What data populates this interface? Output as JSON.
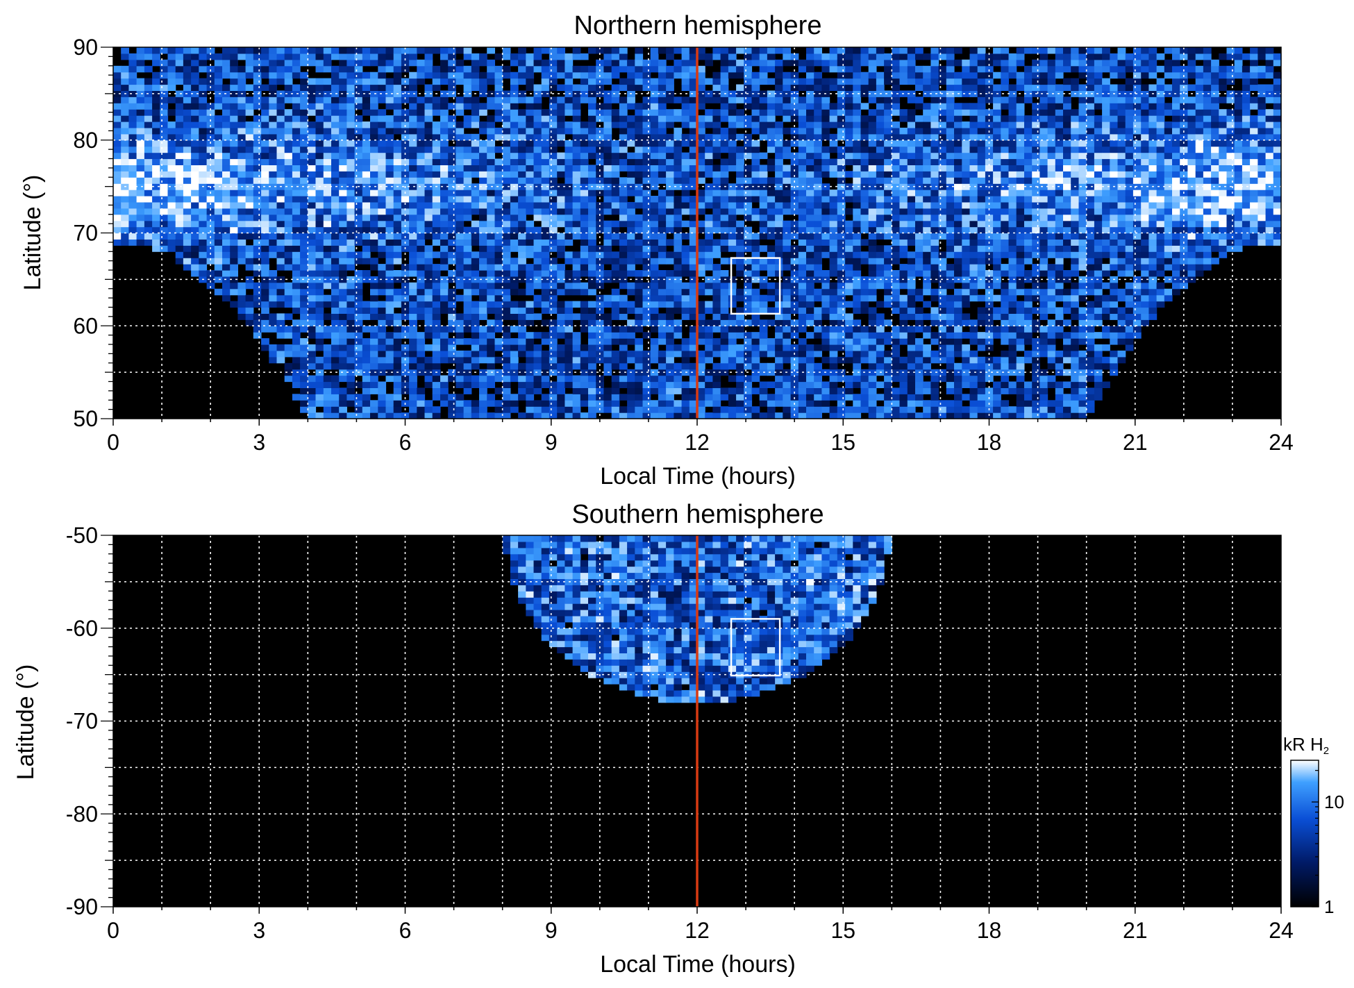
{
  "chart_data": [
    {
      "type": "heatmap",
      "title": "Northern hemisphere",
      "xlabel": "Local Time (hours)",
      "ylabel": "Latitude (°)",
      "xlim": [
        0,
        24
      ],
      "ylim": [
        50,
        90
      ],
      "xticks": [
        0,
        3,
        6,
        9,
        12,
        15,
        18,
        21,
        24
      ],
      "yticks": [
        50,
        60,
        70,
        80,
        90
      ],
      "grid": true,
      "marker_line": {
        "x": 12,
        "color": "#d83a12"
      },
      "highlight_box": {
        "x": [
          12.7,
          13.7
        ],
        "y": [
          61.3,
          67.3
        ],
        "color": "#ffffff"
      },
      "coverage": "observed emission outside a dark region bounded at ~69° near 0 and 24 h, reaching down to 50° between ~4 h and ~19.5 h",
      "intensity_scale": "kR H2, log 1 to ~25"
    },
    {
      "type": "heatmap",
      "title": "Southern hemisphere",
      "xlabel": "Local Time (hours)",
      "ylabel": "Latitude (°)",
      "xlim": [
        0,
        24
      ],
      "ylim": [
        -90,
        -50
      ],
      "xticks": [
        0,
        3,
        6,
        9,
        12,
        15,
        18,
        21,
        24
      ],
      "yticks": [
        -90,
        -80,
        -70,
        -60,
        -50
      ],
      "grid": true,
      "marker_line": {
        "x": 12,
        "color": "#d83a12"
      },
      "highlight_box": {
        "x": [
          12.7,
          13.7
        ],
        "y": [
          -65.1,
          -59.0
        ],
        "color": "#ffffff"
      },
      "coverage": "observed emission confined to an arc centred at 12 h, spanning ~8 h to ~15.9 h at -50° and reaching down to ~-68° at noon",
      "intensity_scale": "kR H2, log 1 to ~25"
    }
  ],
  "colorbar": {
    "label": "kR H",
    "label_subscript": "2",
    "ticks": [
      {
        "value": 1,
        "label": "1"
      },
      {
        "value": 10,
        "label": "10"
      }
    ],
    "range": [
      1,
      25
    ],
    "scale": "log",
    "colors": [
      "#000000",
      "#001a66",
      "#0a4fd6",
      "#3fa0ff",
      "#ffffff"
    ]
  }
}
